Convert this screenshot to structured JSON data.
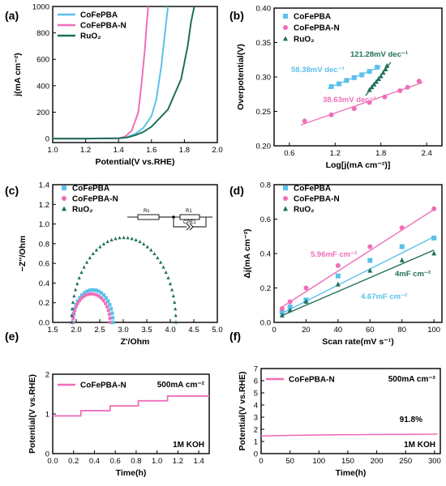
{
  "figure": {
    "colors": {
      "CoFePBA": "#5bc0eb",
      "CoFePBA-N": "#ee6fb8",
      "RuO2": "#1f6f5c",
      "axis": "#000000"
    },
    "panels": {
      "a": {
        "letter": "(a)"
      },
      "b": {
        "letter": "(b)"
      },
      "c": {
        "letter": "(c)"
      },
      "d": {
        "letter": "(d)"
      },
      "e": {
        "letter": "(e)"
      },
      "f": {
        "letter": "(f)"
      }
    }
  },
  "chart_data": [
    {
      "id": "a",
      "type": "line",
      "xlabel": "Potential(V vs.RHE)",
      "ylabel": "j(mA cm⁻²)",
      "xlim": [
        1.0,
        2.0
      ],
      "ylim": [
        -30,
        1000
      ],
      "xticks": [
        1.0,
        1.2,
        1.4,
        1.6,
        1.8,
        2.0
      ],
      "yticks": [
        0,
        200,
        400,
        600,
        800,
        1000
      ],
      "legend": "top-left",
      "series": [
        {
          "name": "CoFePBA",
          "color": "CoFePBA",
          "x": [
            1.0,
            1.2,
            1.4,
            1.45,
            1.5,
            1.55,
            1.6,
            1.63,
            1.66,
            1.68,
            1.7
          ],
          "y": [
            0,
            0,
            2,
            10,
            35,
            80,
            170,
            300,
            550,
            780,
            1000
          ]
        },
        {
          "name": "CoFePBA-N",
          "color": "CoFePBA-N",
          "x": [
            1.0,
            1.2,
            1.4,
            1.44,
            1.48,
            1.52,
            1.54,
            1.56,
            1.57,
            1.58
          ],
          "y": [
            0,
            0,
            3,
            15,
            60,
            200,
            420,
            680,
            850,
            1000
          ]
        },
        {
          "name": "RuO₂",
          "color": "RuO2",
          "x": [
            1.0,
            1.2,
            1.4,
            1.45,
            1.5,
            1.55,
            1.6,
            1.7,
            1.78,
            1.82,
            1.84,
            1.86
          ],
          "y": [
            0,
            0,
            2,
            8,
            25,
            50,
            90,
            220,
            450,
            700,
            880,
            1000
          ]
        }
      ]
    },
    {
      "id": "b",
      "type": "scatter",
      "xlabel": "Log[j(mA cm⁻²)]",
      "ylabel": "Overpotential(V)",
      "xlim": [
        0.4,
        2.6
      ],
      "ylim": [
        0.2,
        0.4
      ],
      "xticks": [
        0.6,
        1.2,
        1.8,
        2.4
      ],
      "yticks": [
        0.2,
        0.25,
        0.3,
        0.35,
        0.4
      ],
      "legend": "top-left",
      "series": [
        {
          "name": "CoFePBA",
          "color": "CoFePBA",
          "marker": "square",
          "x": [
            1.15,
            1.25,
            1.35,
            1.45,
            1.55,
            1.65,
            1.75
          ],
          "y": [
            0.286,
            0.29,
            0.295,
            0.299,
            0.303,
            0.308,
            0.314
          ],
          "fit_label": "58.38mV dec⁻¹"
        },
        {
          "name": "CoFePBA-N",
          "color": "CoFePBA-N",
          "marker": "circle",
          "x": [
            0.8,
            1.15,
            1.45,
            1.65,
            1.85,
            2.05,
            2.15,
            2.3
          ],
          "y": [
            0.236,
            0.245,
            0.254,
            0.263,
            0.271,
            0.28,
            0.285,
            0.294
          ],
          "fit_label": "38.63mV dec⁻¹"
        },
        {
          "name": "RuO₂",
          "color": "RuO2",
          "marker": "triangle",
          "x": [
            1.65,
            1.68,
            1.71,
            1.74,
            1.77,
            1.8,
            1.83,
            1.86,
            1.88
          ],
          "y": [
            0.281,
            0.285,
            0.289,
            0.293,
            0.297,
            0.301,
            0.306,
            0.311,
            0.316
          ],
          "fit_label": "121.28mV dec⁻¹"
        }
      ]
    },
    {
      "id": "c",
      "type": "scatter",
      "xlabel": "Z'/Ohm",
      "ylabel": "−Z''/Ohm",
      "xlim": [
        1.5,
        5.0
      ],
      "ylim": [
        0,
        1.4
      ],
      "xticks": [
        1.5,
        2.0,
        2.5,
        3.0,
        3.5,
        4.0,
        4.5,
        5.0
      ],
      "yticks": [
        0.0,
        0.2,
        0.4,
        0.6,
        0.8,
        1.0,
        1.2,
        1.4
      ],
      "legend": "top-left",
      "circuit_labels": [
        "Rs",
        "R1",
        "CPE1"
      ],
      "series": [
        {
          "name": "CoFePBA",
          "color": "CoFePBA",
          "marker": "square",
          "arc": [
            1.93,
            2.78,
            0.33
          ],
          "n": 22
        },
        {
          "name": "CoFePBA-N",
          "color": "CoFePBA-N",
          "marker": "circle",
          "arc": [
            1.93,
            2.72,
            0.29
          ],
          "n": 22
        },
        {
          "name": "RuO₂",
          "color": "RuO2",
          "marker": "triangle",
          "arc": [
            1.9,
            4.12,
            0.86
          ],
          "n": 40
        }
      ]
    },
    {
      "id": "d",
      "type": "scatter",
      "xlabel": "Scan rate(mV s⁻¹)",
      "ylabel": "Δj(mA cm⁻²)",
      "xlim": [
        0,
        105
      ],
      "ylim": [
        0,
        0.8
      ],
      "xticks": [
        0,
        20,
        40,
        60,
        80,
        100
      ],
      "yticks": [
        0.0,
        0.2,
        0.4,
        0.6,
        0.8
      ],
      "legend": "top-left",
      "series": [
        {
          "name": "CoFePBA",
          "color": "CoFePBA",
          "marker": "square",
          "x": [
            5,
            10,
            20,
            40,
            60,
            80,
            100
          ],
          "y": [
            0.06,
            0.09,
            0.13,
            0.27,
            0.36,
            0.44,
            0.49
          ],
          "fit": [
            0.03,
            0.00467
          ],
          "fit_label": "4.67mF cm⁻²"
        },
        {
          "name": "CoFePBA-N",
          "color": "CoFePBA-N",
          "marker": "circle",
          "x": [
            5,
            10,
            20,
            40,
            60,
            80,
            100
          ],
          "y": [
            0.08,
            0.12,
            0.2,
            0.33,
            0.44,
            0.55,
            0.66
          ],
          "fit": [
            0.06,
            0.00596
          ],
          "fit_label": "5.96mF cm⁻²"
        },
        {
          "name": "RuO₂",
          "color": "RuO2",
          "marker": "triangle",
          "x": [
            5,
            10,
            20,
            40,
            60,
            80,
            100
          ],
          "y": [
            0.04,
            0.07,
            0.12,
            0.22,
            0.3,
            0.36,
            0.4
          ],
          "fit": [
            0.02,
            0.004
          ],
          "fit_label": "4mF cm⁻²"
        }
      ]
    },
    {
      "id": "e",
      "type": "line",
      "xlabel": "Time(h)",
      "ylabel": "Potential(V vs.RHE)",
      "xlim": [
        0,
        1.5
      ],
      "ylim": [
        0,
        2
      ],
      "xticks": [
        0.0,
        0.2,
        0.4,
        0.6,
        0.8,
        1.0,
        1.2,
        1.4
      ],
      "yticks": [
        0,
        1,
        2
      ],
      "legend": "top-left",
      "annotation_top": "500mA cm⁻²",
      "annotation_bottom": "1M KOH",
      "series": [
        {
          "name": "CoFePBA-N",
          "color": "CoFePBA-N",
          "x": [
            0,
            0.27,
            0.27,
            0.55,
            0.55,
            0.82,
            0.82,
            1.1,
            1.1,
            1.5
          ],
          "y": [
            0.95,
            0.95,
            1.08,
            1.08,
            1.2,
            1.2,
            1.33,
            1.33,
            1.45,
            1.45
          ]
        }
      ]
    },
    {
      "id": "f",
      "type": "line",
      "xlabel": "Time(h)",
      "ylabel": "Potential(V vs.RHE)",
      "xlim": [
        0,
        310
      ],
      "ylim": [
        0,
        7
      ],
      "xticks": [
        0,
        50,
        100,
        150,
        200,
        250,
        300
      ],
      "yticks": [
        0,
        1,
        2,
        3,
        4,
        5,
        6,
        7
      ],
      "legend": "top-left",
      "annotation_top": "500mA cm⁻²",
      "annotation_mid": "91.8%",
      "annotation_bottom": "1M KOH",
      "series": [
        {
          "name": "CoFePBA-N",
          "color": "CoFePBA-N",
          "x": [
            0,
            20,
            50,
            100,
            150,
            160,
            200,
            250,
            300,
            305
          ],
          "y": [
            1.45,
            1.47,
            1.5,
            1.53,
            1.56,
            1.55,
            1.57,
            1.58,
            1.6,
            1.61
          ]
        }
      ]
    }
  ]
}
